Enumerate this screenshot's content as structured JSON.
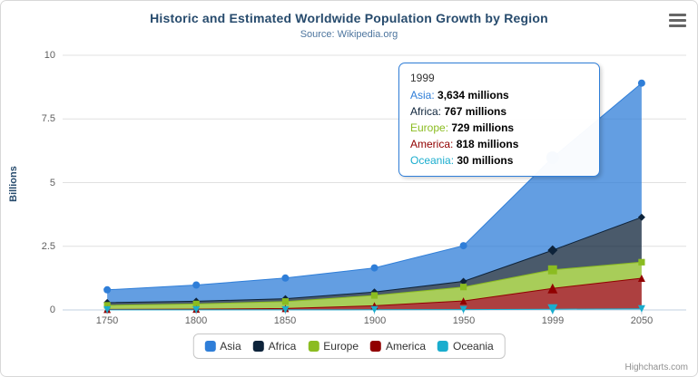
{
  "chart_data": {
    "type": "area",
    "title": "Historic and Estimated Worldwide Population Growth by Region",
    "subtitle": "Source: Wikipedia.org",
    "ylabel": "Billions",
    "xlabel": "",
    "categories": [
      "1750",
      "1800",
      "1850",
      "1900",
      "1950",
      "1999",
      "2050"
    ],
    "y_ticks": [
      0,
      2.5,
      5,
      7.5,
      10
    ],
    "ylim": [
      0,
      10
    ],
    "stacking": "normal",
    "units": "millions",
    "grid": true,
    "legend_position": "bottom",
    "series": [
      {
        "name": "Asia",
        "color": "#2f7ed8",
        "marker": "circle",
        "values": [
          502,
          635,
          809,
          947,
          1402,
          3634,
          5268
        ]
      },
      {
        "name": "Africa",
        "color": "#0d233a",
        "marker": "diamond",
        "values": [
          106,
          107,
          111,
          133,
          221,
          767,
          1766
        ]
      },
      {
        "name": "Europe",
        "color": "#8bbc21",
        "marker": "square",
        "values": [
          163,
          203,
          276,
          408,
          547,
          729,
          628
        ]
      },
      {
        "name": "America",
        "color": "#910000",
        "marker": "triangle",
        "values": [
          18,
          31,
          54,
          156,
          339,
          818,
          1201
        ]
      },
      {
        "name": "Oceania",
        "color": "#1aadce",
        "marker": "triangle-down",
        "values": [
          2,
          2,
          2,
          6,
          13,
          30,
          46
        ]
      }
    ]
  },
  "tooltip": {
    "header": "1999",
    "highlight_category": "1999",
    "rows": [
      {
        "name": "Asia",
        "value": "3,634 millions",
        "color": "#2f7ed8"
      },
      {
        "name": "Africa",
        "value": "767 millions",
        "color": "#0d233a"
      },
      {
        "name": "Europe",
        "value": "729 millions",
        "color": "#8bbc21"
      },
      {
        "name": "America",
        "value": "818 millions",
        "color": "#910000"
      },
      {
        "name": "Oceania",
        "value": "30 millions",
        "color": "#1aadce"
      }
    ]
  },
  "credits": "Highcharts.com"
}
